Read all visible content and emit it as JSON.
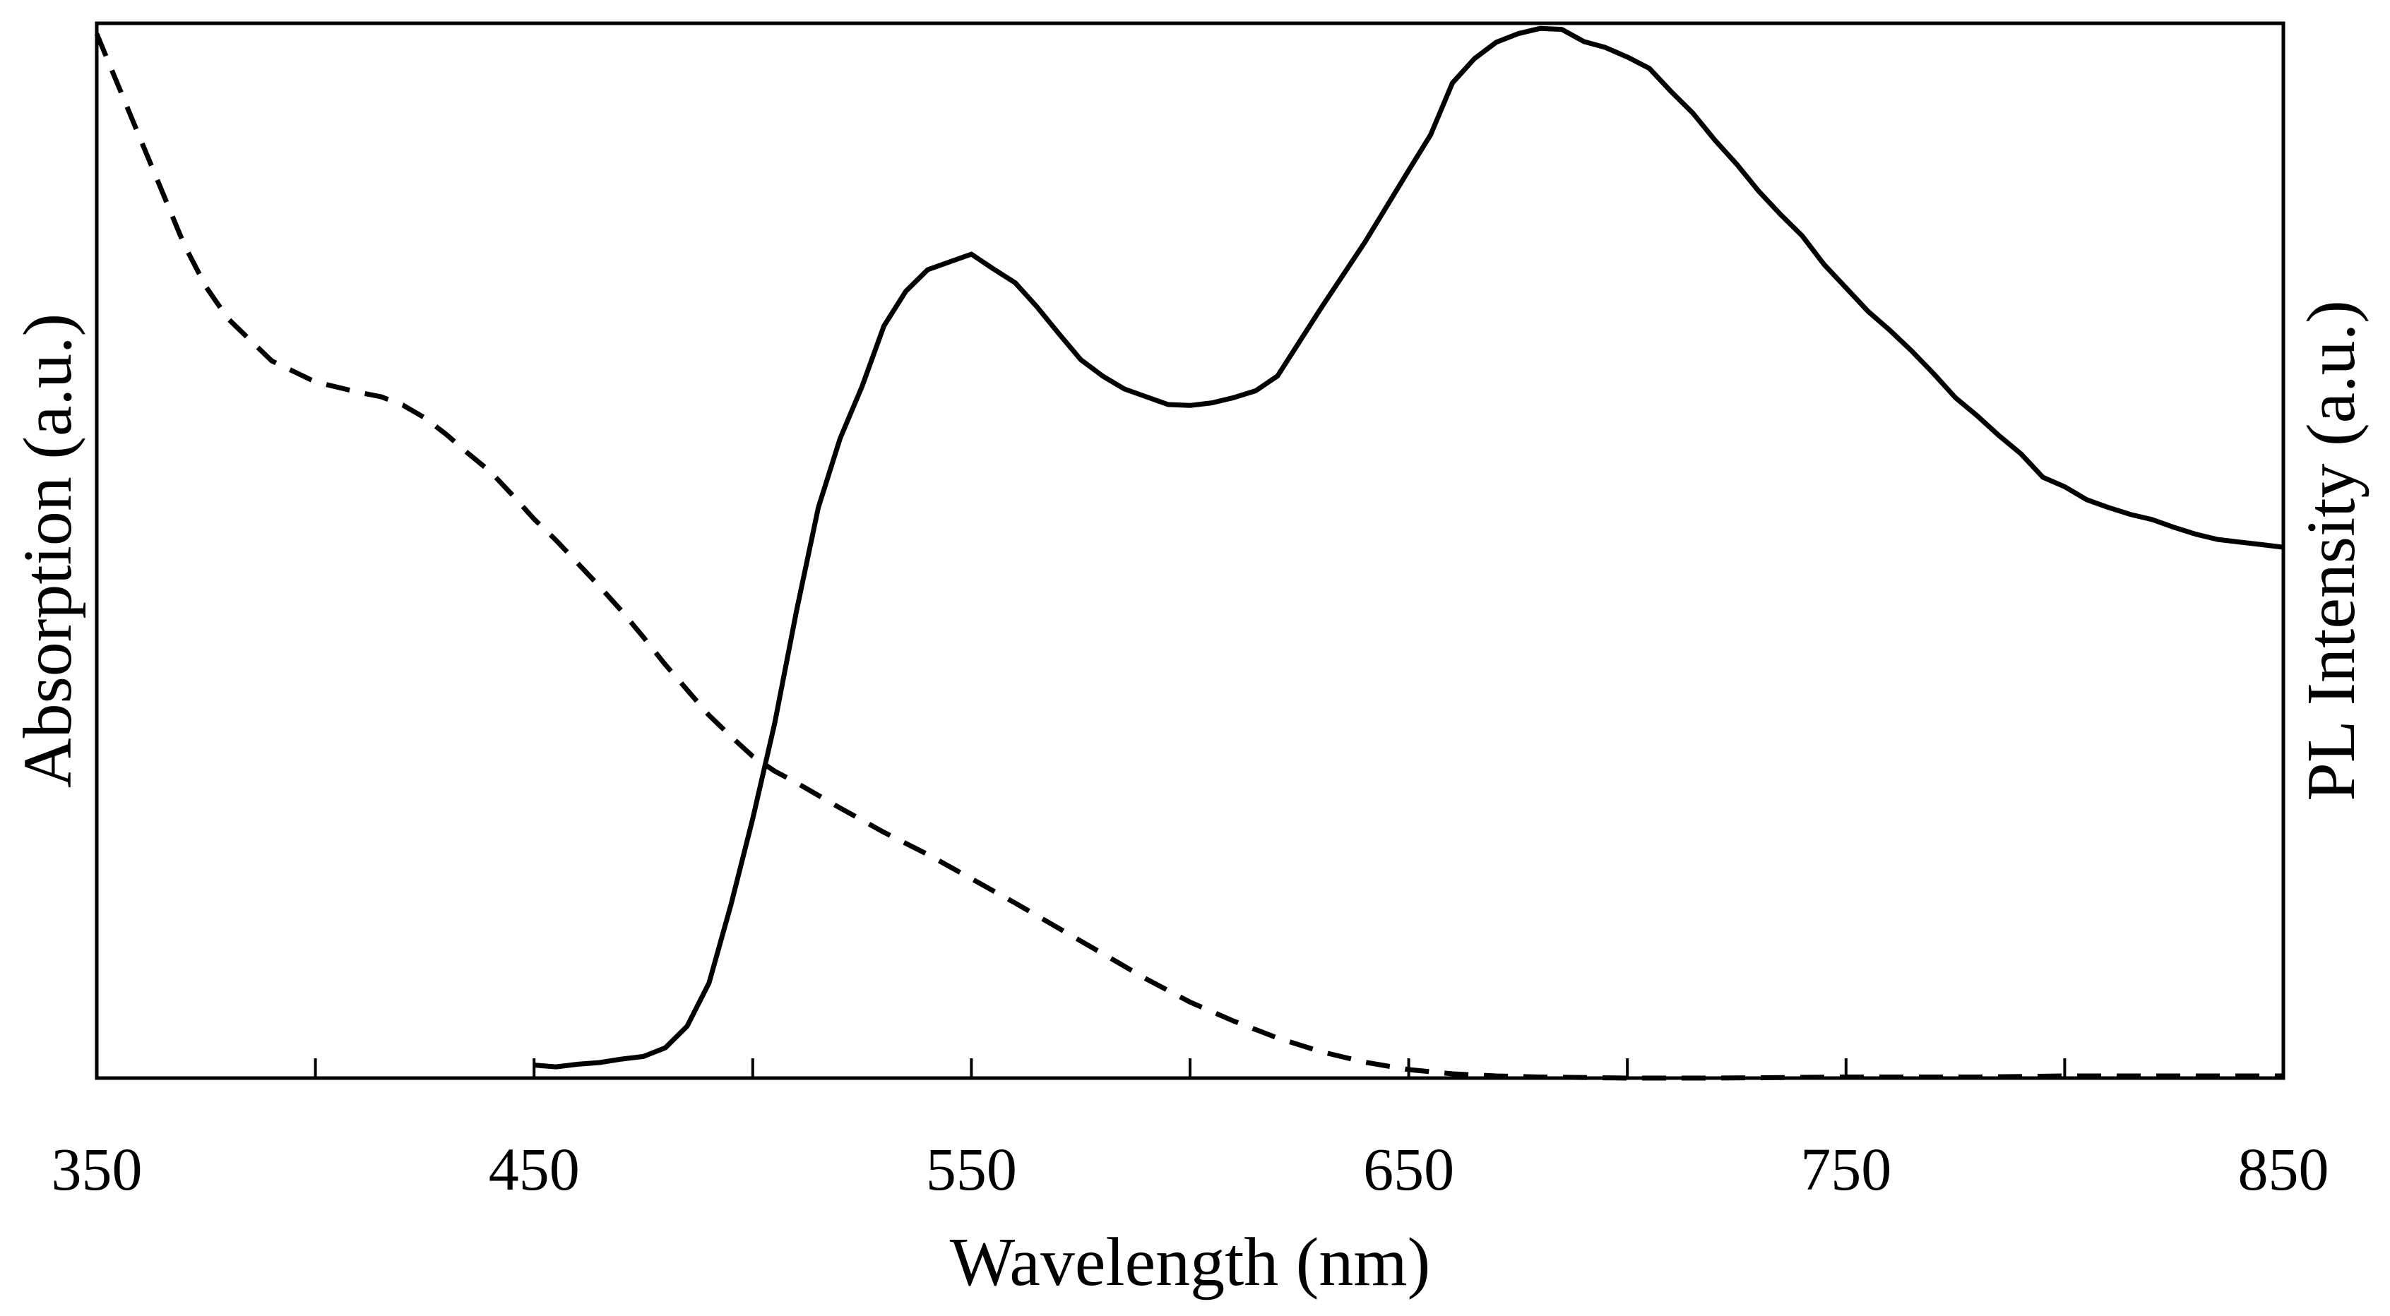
{
  "chart_data": {
    "type": "line",
    "title": "",
    "xlabel": "Wavelength (nm)",
    "ylabel_left": "Absorption (a.u.)",
    "ylabel_right": "PL Intensity (a.u.)",
    "xlim": [
      350,
      850
    ],
    "ylim": [
      0,
      1
    ],
    "xticks": [
      350,
      450,
      550,
      650,
      750,
      850
    ],
    "xtick_labels": [
      "350",
      "450",
      "550",
      "650",
      "750",
      "850"
    ],
    "minor_xticks": [
      400,
      500,
      600,
      700,
      800
    ],
    "grid": false,
    "series": [
      {
        "name": "Absorption",
        "style": "dashed",
        "axis": "left",
        "x": [
          350,
          355,
          360,
          365,
          370,
          375,
          380,
          385,
          390,
          395,
          400,
          405,
          410,
          415,
          420,
          425,
          430,
          435,
          440,
          445,
          450,
          455,
          460,
          465,
          470,
          475,
          480,
          485,
          490,
          495,
          500,
          505,
          510,
          520,
          530,
          540,
          550,
          560,
          570,
          580,
          590,
          600,
          610,
          620,
          630,
          640,
          650,
          660,
          670,
          680,
          700,
          720,
          750,
          780,
          800,
          820,
          850
        ],
        "values": [
          0.99,
          0.94,
          0.89,
          0.84,
          0.79,
          0.75,
          0.72,
          0.7,
          0.68,
          0.67,
          0.66,
          0.655,
          0.65,
          0.646,
          0.638,
          0.626,
          0.61,
          0.592,
          0.575,
          0.553,
          0.53,
          0.51,
          0.488,
          0.466,
          0.443,
          0.418,
          0.392,
          0.368,
          0.344,
          0.324,
          0.305,
          0.291,
          0.28,
          0.256,
          0.233,
          0.212,
          0.189,
          0.166,
          0.142,
          0.118,
          0.094,
          0.072,
          0.054,
          0.038,
          0.025,
          0.015,
          0.008,
          0.004,
          0.002,
          0.001,
          0.0,
          0.0,
          0.001,
          0.001,
          0.002,
          0.002,
          0.002
        ]
      },
      {
        "name": "PL Intensity",
        "style": "solid",
        "axis": "right",
        "x": [
          450,
          455,
          460,
          465,
          470,
          475,
          480,
          485,
          490,
          495,
          500,
          505,
          510,
          515,
          520,
          525,
          530,
          535,
          540,
          545,
          550,
          555,
          560,
          565,
          570,
          575,
          580,
          585,
          590,
          595,
          600,
          605,
          610,
          615,
          620,
          630,
          640,
          650,
          655,
          660,
          665,
          670,
          675,
          680,
          685,
          690,
          695,
          700,
          705,
          710,
          715,
          720,
          725,
          730,
          735,
          740,
          745,
          750,
          755,
          760,
          765,
          770,
          775,
          780,
          785,
          790,
          795,
          800,
          805,
          810,
          815,
          820,
          825,
          830,
          835,
          840,
          845,
          850
        ],
        "values": [
          0.015,
          0.013,
          0.016,
          0.018,
          0.022,
          0.025,
          0.035,
          0.06,
          0.11,
          0.2,
          0.3,
          0.41,
          0.54,
          0.66,
          0.74,
          0.8,
          0.87,
          0.91,
          0.935,
          0.944,
          0.953,
          0.936,
          0.92,
          0.892,
          0.861,
          0.831,
          0.812,
          0.797,
          0.788,
          0.779,
          0.778,
          0.781,
          0.787,
          0.795,
          0.812,
          0.891,
          0.967,
          1.05,
          1.091,
          1.151,
          1.179,
          1.198,
          1.208,
          1.214,
          1.213,
          1.199,
          1.192,
          1.181,
          1.168,
          1.141,
          1.116,
          1.085,
          1.057,
          1.026,
          0.999,
          0.974,
          0.941,
          0.914,
          0.887,
          0.865,
          0.841,
          0.815,
          0.787,
          0.766,
          0.743,
          0.722,
          0.695,
          0.684,
          0.669,
          0.66,
          0.652,
          0.646,
          0.637,
          0.629,
          0.623,
          0.62,
          0.617,
          0.614
        ]
      }
    ]
  }
}
